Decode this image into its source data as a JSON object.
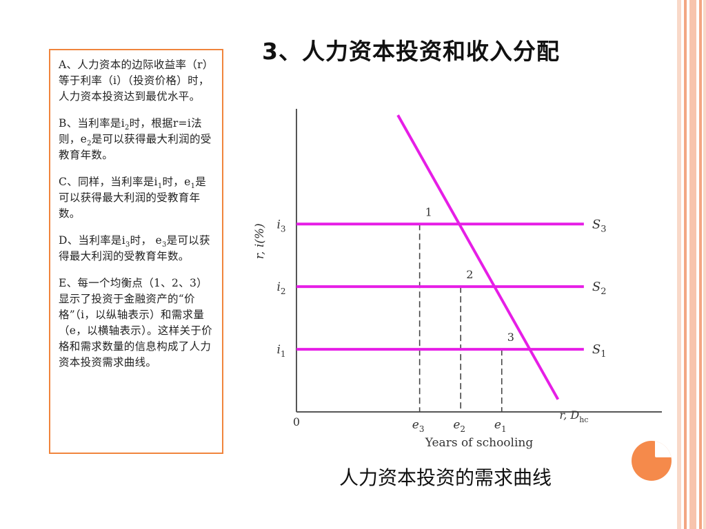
{
  "slide": {
    "title": "3、人力资本投资和收入分配",
    "caption": "人力资本投资的需求曲线"
  },
  "text_box": {
    "paragraphs": [
      {
        "parts": [
          "A、人力资本的边际收益率（r）等于利率（i）（投资价格）时，人力资本投资达到最优水平。"
        ]
      },
      {
        "parts": [
          "B、当利率是i",
          "2",
          "时，根据r=i法则，e",
          "2",
          "是可以获得最大利润的受教育年数。"
        ]
      },
      {
        "parts": [
          "C、同样，当利率是i",
          "1",
          "时，e",
          "1",
          "是可以获得最大利润的受教育年数。"
        ]
      },
      {
        "parts": [
          "D、当利率是i",
          "3",
          "时， e",
          "3",
          "是可以获得最大利润的受教育年数。"
        ]
      },
      {
        "parts": [
          "E、每一个均衡点（1、2、3）显示了投资于金融资产的“价格”（i，以纵轴表示）和需求量（e，以横轴表示）。这样关于价格和需求数量的信息构成了人力资本投资需求曲线。"
        ]
      }
    ]
  },
  "chart_data": {
    "type": "line",
    "xlabel": "Years of schooling",
    "ylabel": "r, i(%)",
    "origin_label": "0",
    "x_ticks": [
      {
        "label": "e",
        "sub": "3",
        "value": 3
      },
      {
        "label": "e",
        "sub": "2",
        "value": 4
      },
      {
        "label": "e",
        "sub": "1",
        "value": 5
      }
    ],
    "y_ticks": [
      {
        "label": "i",
        "sub": "3",
        "value": 3
      },
      {
        "label": "i",
        "sub": "2",
        "value": 2
      },
      {
        "label": "i",
        "sub": "1",
        "value": 1
      }
    ],
    "xlim": [
      0,
      8.9
    ],
    "ylim": [
      0,
      4.84
    ],
    "series": [
      {
        "name": "S3",
        "label_main": "S",
        "label_sub": "3",
        "kind": "horizontal",
        "y": 3,
        "x_start": 0,
        "x_end": 7.0
      },
      {
        "name": "S2",
        "label_main": "S",
        "label_sub": "2",
        "kind": "horizontal",
        "y": 2,
        "x_start": 0,
        "x_end": 7.0
      },
      {
        "name": "S1",
        "label_main": "S",
        "label_sub": "1",
        "kind": "horizontal",
        "y": 1,
        "x_start": 0,
        "x_end": 7.0
      },
      {
        "name": "r, Dhc",
        "label_main": "r, D",
        "label_sub": "hc",
        "kind": "line",
        "points": [
          [
            2.47,
            4.74
          ],
          [
            6.37,
            0.2
          ]
        ]
      }
    ],
    "equilibria": [
      {
        "label": "1",
        "x": 3,
        "y": 3
      },
      {
        "label": "2",
        "x": 4,
        "y": 2
      },
      {
        "label": "3",
        "x": 5,
        "y": 1
      }
    ],
    "colors": {
      "lines": "#e61ee6",
      "axis": "#555555",
      "text": "#333333"
    }
  },
  "decor": {
    "accent": "#f58a4b",
    "box_border": "#f0843c",
    "stripe_colors": [
      "#f7c9b3",
      "#f3a682",
      "#f7c9b3"
    ]
  }
}
